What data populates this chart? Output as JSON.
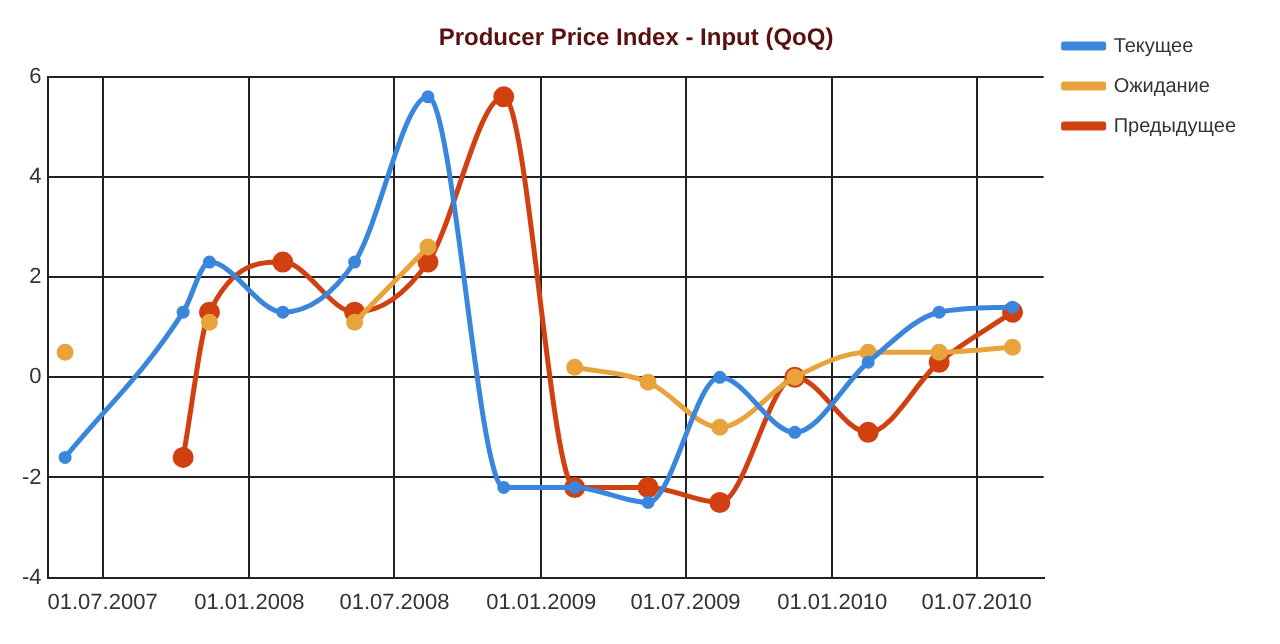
{
  "chart_data": {
    "type": "line",
    "title": "Producer Price Index - Input (QoQ)",
    "x": [
      "2007-05-15",
      "2007-10-10",
      "2007-11-12",
      "2008-02-12",
      "2008-05-12",
      "2008-08-12",
      "2008-11-15",
      "2009-02-12",
      "2009-05-15",
      "2009-08-13",
      "2009-11-15",
      "2010-02-15",
      "2010-05-15",
      "2010-08-15"
    ],
    "series": [
      {
        "name": "Текущее",
        "color": "#3a86dc",
        "values": [
          -1.6,
          1.3,
          2.3,
          1.3,
          2.3,
          5.6,
          -2.2,
          -2.2,
          -2.5,
          0,
          -1.1,
          0.3,
          1.3,
          1.4
        ]
      },
      {
        "name": "Ожидание",
        "color": "#e8a33c",
        "values": [
          0.5,
          null,
          1.1,
          null,
          1.1,
          2.6,
          null,
          0.2,
          -0.1,
          -1.0,
          0,
          0.5,
          0.5,
          0.6
        ]
      },
      {
        "name": "Предыдущее",
        "color": "#d04010",
        "values": [
          null,
          -1.6,
          1.3,
          2.3,
          1.3,
          2.3,
          5.6,
          -2.2,
          -2.2,
          -2.5,
          0,
          -1.1,
          0.3,
          1.3
        ]
      }
    ],
    "xlim": [
      "2007-04-23",
      "2010-09-23"
    ],
    "xticks": [
      {
        "value": "2007-07-01",
        "label": "01.07.2007"
      },
      {
        "value": "2008-01-01",
        "label": "01.01.2008"
      },
      {
        "value": "2008-07-01",
        "label": "01.07.2008"
      },
      {
        "value": "2009-01-01",
        "label": "01.01.2009"
      },
      {
        "value": "2009-07-01",
        "label": "01.07.2009"
      },
      {
        "value": "2010-01-01",
        "label": "01.01.2010"
      },
      {
        "value": "2010-07-01",
        "label": "01.07.2010"
      }
    ],
    "ylim": [
      -4,
      6
    ],
    "yticks": [
      -4,
      -2,
      0,
      2,
      4,
      6
    ],
    "grid": true,
    "legend": "top right",
    "marker": "circle",
    "line_style": "solid"
  }
}
